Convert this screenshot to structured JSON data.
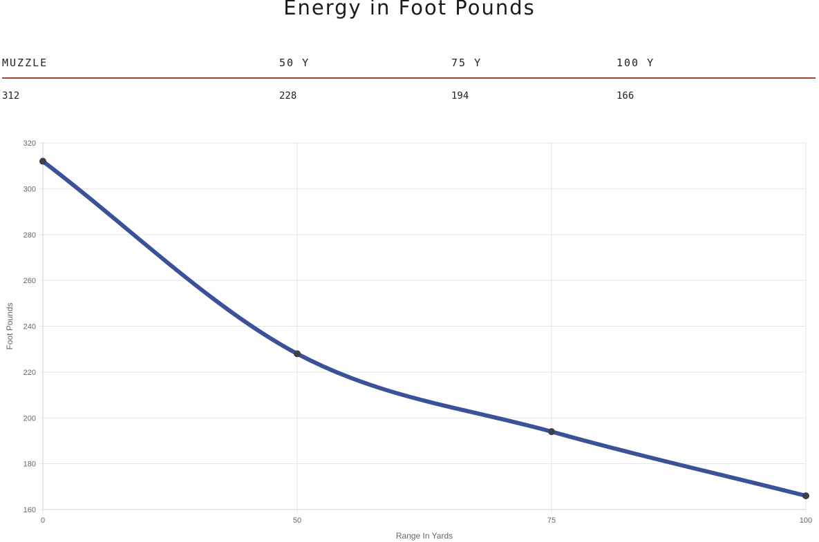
{
  "title": "Energy in Foot Pounds",
  "table": {
    "headers": [
      "MUZZLE",
      "50 Y",
      "75 Y",
      "100 Y"
    ],
    "values": [
      "312",
      "228",
      "194",
      "166"
    ]
  },
  "colors": {
    "line": "#3b5198",
    "point": "#3d3f4a",
    "header_rule": "#a0442a",
    "grid": "#e6e6e6"
  },
  "chart_data": {
    "type": "line",
    "x": [
      0,
      50,
      75,
      100
    ],
    "series": [
      {
        "values": [
          312,
          228,
          194,
          166
        ]
      }
    ],
    "xticks": [
      "0",
      "50",
      "75",
      "100"
    ],
    "yticks": [
      "160",
      "180",
      "200",
      "220",
      "240",
      "260",
      "280",
      "300",
      "320"
    ],
    "xlabel": "Range In Yards",
    "ylabel": "Foot Pounds",
    "ylim": [
      160,
      320
    ],
    "grid": true,
    "legend": "none"
  }
}
